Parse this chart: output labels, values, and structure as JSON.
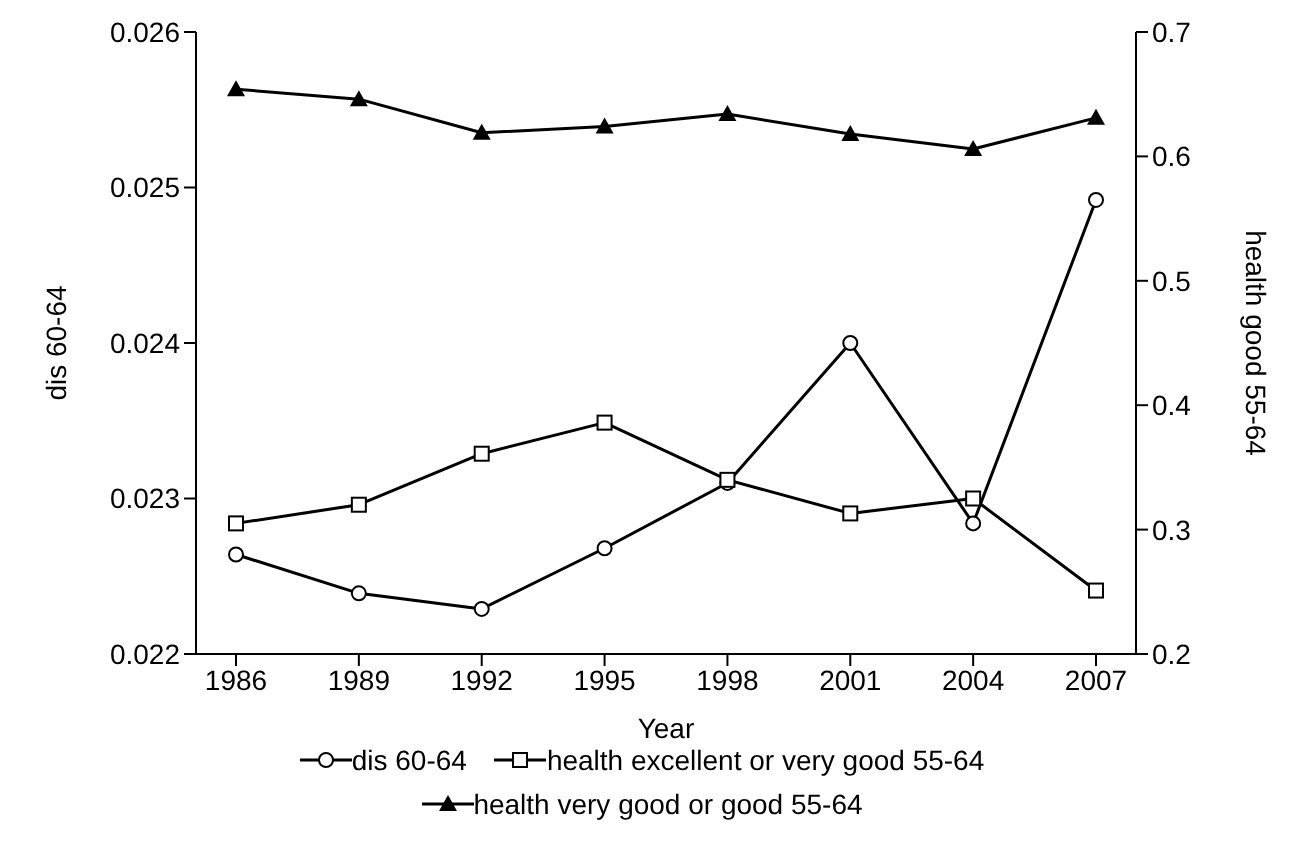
{
  "chart_data": {
    "type": "line",
    "xlabel": "Year",
    "ylabel": "dis 60-64",
    "y2label": "health good 55-64",
    "categories": [
      "1986",
      "1989",
      "1992",
      "1995",
      "1998",
      "2001",
      "2004",
      "2007"
    ],
    "series": [
      {
        "name": "dis 60-64",
        "color": "#000000",
        "marker": "circle",
        "values": [
          0.02264,
          0.02239,
          0.02229,
          0.02268,
          0.0231,
          0.024,
          0.02284,
          0.02492
        ]
      },
      {
        "name": "health excellent or very good 55-64",
        "color": "#000000",
        "marker": "square",
        "axis": "y2",
        "values": [
          0.305,
          0.32,
          0.361,
          0.386,
          0.34,
          0.313,
          0.325,
          0.251
        ]
      },
      {
        "name": "health very good or good 55-64",
        "color": "#000000",
        "marker": "triangle",
        "axis": "y2",
        "values": [
          0.654,
          0.646,
          0.619,
          0.624,
          0.634,
          0.618,
          0.606,
          0.631
        ]
      }
    ],
    "ylim": [
      0.022,
      0.026
    ],
    "yticks": [
      0.022,
      0.023,
      0.024,
      0.025,
      0.026
    ],
    "y2lim": [
      0.2,
      0.7
    ],
    "y2ticks": [
      0.2,
      0.3,
      0.4,
      0.5,
      0.6,
      0.7
    ],
    "grid": false,
    "legend": "bottom"
  }
}
